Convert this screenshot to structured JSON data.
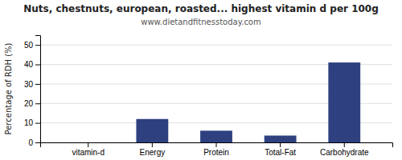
{
  "chart_data": {
    "type": "bar",
    "title": "Nuts, chestnuts, european, roasted... highest vitamin d per 100g",
    "subtitle": "www.dietandfitnesstoday.com",
    "ylabel": "Percentage of RDH (%)",
    "categories": [
      "vitamin-d",
      "Energy",
      "Protein",
      "Total-Fat",
      "Carbohydrate"
    ],
    "values": [
      0,
      12,
      6,
      3.5,
      41
    ],
    "color": "#2e4080",
    "ylim": [
      0,
      55
    ],
    "yticks": [
      0,
      10,
      20,
      30,
      40,
      50
    ],
    "grid": true
  }
}
